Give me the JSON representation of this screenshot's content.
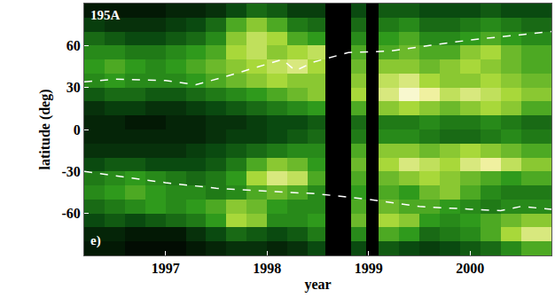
{
  "chart_data": {
    "type": "heatmap",
    "x_label": "year",
    "y_label": "latitude (deg)",
    "annotations": [
      "195A",
      "e)"
    ],
    "xlim": [
      1996.2,
      2000.8
    ],
    "xticks": [
      1997,
      1998,
      1999,
      2000
    ],
    "ylim": [
      -90,
      90
    ],
    "yticks": [
      -60,
      -30,
      0,
      30,
      60
    ],
    "zlim": [
      0,
      1
    ],
    "x_bins": [
      1996.2,
      1996.4,
      1996.6,
      1996.8,
      1997.0,
      1997.2,
      1997.4,
      1997.6,
      1997.8,
      1998.0,
      1998.2,
      1998.4,
      1998.57,
      1998.83,
      1998.98,
      1999.1,
      1999.3,
      1999.5,
      1999.7,
      1999.9,
      2000.1,
      2000.3,
      2000.5,
      2000.8
    ],
    "y_bins": [
      -90,
      -80,
      -70,
      -60,
      -50,
      -40,
      -30,
      -20,
      -10,
      0,
      10,
      20,
      30,
      40,
      50,
      60,
      70,
      80,
      90
    ],
    "cells": [
      [
        0.1,
        0.1,
        0.05,
        0.05,
        0.05,
        0.1,
        0.15,
        0.2,
        0.2,
        0.15,
        0.2,
        0.3,
        null,
        0.3,
        null,
        0.35,
        0.3,
        0.25,
        0.3,
        0.35,
        0.4,
        0.5,
        0.6
      ],
      [
        0.15,
        0.15,
        0.1,
        0.1,
        0.1,
        0.2,
        0.3,
        0.4,
        0.35,
        0.3,
        0.35,
        0.45,
        null,
        0.5,
        null,
        0.6,
        0.55,
        0.4,
        0.45,
        0.5,
        0.6,
        0.75,
        0.85
      ],
      [
        0.3,
        0.35,
        0.3,
        0.35,
        0.4,
        0.45,
        0.55,
        0.75,
        0.7,
        0.5,
        0.5,
        0.55,
        null,
        0.65,
        null,
        0.75,
        0.7,
        0.55,
        0.5,
        0.55,
        0.6,
        0.65,
        0.7
      ],
      [
        0.4,
        0.45,
        0.5,
        0.55,
        0.5,
        0.55,
        0.6,
        0.7,
        0.65,
        0.55,
        0.5,
        0.5,
        null,
        0.6,
        null,
        0.65,
        0.6,
        0.6,
        0.55,
        0.5,
        0.45,
        0.5,
        0.5
      ],
      [
        0.5,
        0.55,
        0.6,
        0.55,
        0.5,
        0.5,
        0.45,
        0.5,
        0.6,
        0.65,
        0.6,
        0.5,
        null,
        0.55,
        null,
        0.6,
        0.55,
        0.65,
        0.7,
        0.6,
        0.5,
        0.45,
        0.45
      ],
      [
        0.45,
        0.5,
        0.55,
        0.5,
        0.45,
        0.4,
        0.45,
        0.55,
        0.75,
        0.85,
        0.8,
        0.6,
        null,
        0.6,
        null,
        0.65,
        0.7,
        0.75,
        0.7,
        0.65,
        0.6,
        0.55,
        0.6
      ],
      [
        0.3,
        0.35,
        0.35,
        0.3,
        0.3,
        0.3,
        0.35,
        0.45,
        0.6,
        0.7,
        0.65,
        0.55,
        null,
        0.65,
        null,
        0.75,
        0.85,
        0.8,
        0.75,
        0.85,
        0.9,
        0.8,
        0.7
      ],
      [
        0.2,
        0.2,
        0.2,
        0.2,
        0.2,
        0.25,
        0.3,
        0.35,
        0.4,
        0.45,
        0.5,
        0.5,
        null,
        0.6,
        null,
        0.7,
        0.7,
        0.65,
        0.7,
        0.75,
        0.7,
        0.65,
        0.6
      ],
      [
        0.15,
        0.15,
        0.15,
        0.15,
        0.15,
        0.15,
        0.2,
        0.25,
        0.25,
        0.3,
        0.35,
        0.4,
        null,
        0.45,
        null,
        0.5,
        0.5,
        0.45,
        0.4,
        0.4,
        0.45,
        0.5,
        0.45
      ],
      [
        0.15,
        0.15,
        0.1,
        0.1,
        0.15,
        0.15,
        0.2,
        0.2,
        0.25,
        0.3,
        0.3,
        0.35,
        null,
        0.4,
        null,
        0.45,
        0.45,
        0.5,
        0.45,
        0.45,
        0.5,
        0.45,
        0.4
      ],
      [
        0.2,
        0.25,
        0.25,
        0.2,
        0.2,
        0.25,
        0.3,
        0.35,
        0.4,
        0.45,
        0.5,
        0.55,
        null,
        0.6,
        null,
        0.7,
        0.75,
        0.7,
        0.65,
        0.7,
        0.75,
        0.7,
        0.6
      ],
      [
        0.35,
        0.4,
        0.4,
        0.35,
        0.35,
        0.4,
        0.45,
        0.5,
        0.55,
        0.6,
        0.65,
        0.7,
        null,
        0.75,
        null,
        0.85,
        0.95,
        0.9,
        0.8,
        0.85,
        0.8,
        0.75,
        0.7
      ],
      [
        0.5,
        0.55,
        0.5,
        0.5,
        0.5,
        0.55,
        0.6,
        0.65,
        0.7,
        0.75,
        0.7,
        0.7,
        null,
        0.7,
        null,
        0.8,
        0.85,
        0.75,
        0.7,
        0.7,
        0.75,
        0.7,
        0.65
      ],
      [
        0.55,
        0.6,
        0.55,
        0.5,
        0.55,
        0.6,
        0.65,
        0.7,
        0.75,
        0.8,
        0.85,
        0.75,
        null,
        0.65,
        null,
        0.7,
        0.7,
        0.65,
        0.7,
        0.75,
        0.7,
        0.65,
        0.6
      ],
      [
        0.5,
        0.5,
        0.45,
        0.45,
        0.5,
        0.55,
        0.6,
        0.75,
        0.8,
        0.7,
        0.75,
        0.8,
        null,
        0.6,
        null,
        0.6,
        0.65,
        0.6,
        0.6,
        0.7,
        0.75,
        0.65,
        0.6
      ],
      [
        0.4,
        0.35,
        0.3,
        0.3,
        0.35,
        0.4,
        0.5,
        0.7,
        0.8,
        0.75,
        0.6,
        0.55,
        null,
        0.5,
        null,
        0.55,
        0.6,
        0.5,
        0.5,
        0.55,
        0.6,
        0.55,
        0.5
      ],
      [
        0.25,
        0.2,
        0.2,
        0.2,
        0.25,
        0.3,
        0.4,
        0.6,
        0.7,
        0.6,
        0.45,
        0.4,
        null,
        0.4,
        null,
        0.45,
        0.5,
        0.4,
        0.4,
        0.45,
        0.5,
        0.45,
        0.4
      ],
      [
        0.1,
        0.1,
        0.1,
        0.1,
        0.15,
        0.15,
        0.2,
        0.3,
        0.4,
        0.35,
        0.25,
        0.25,
        null,
        0.3,
        null,
        0.35,
        0.35,
        0.3,
        0.3,
        0.3,
        0.35,
        0.3,
        0.3
      ]
    ],
    "lines": [
      {
        "x": [
          1996.2,
          1996.5,
          1997.0,
          1997.3,
          1997.6,
          1998.0,
          1998.15,
          1998.28,
          1998.45,
          1998.8,
          1999.2,
          1999.6,
          2000.0,
          2000.4,
          2000.8
        ],
        "values": [
          34,
          36,
          35,
          32,
          38,
          47,
          50,
          42,
          48,
          55,
          56,
          60,
          64,
          67,
          70
        ],
        "color": "#ffffff",
        "line_style": "dashed"
      },
      {
        "x": [
          1996.2,
          1996.5,
          1997.0,
          1997.5,
          1998.0,
          1998.5,
          1999.0,
          1999.5,
          2000.0,
          2000.3,
          2000.5,
          2000.8
        ],
        "values": [
          -30,
          -33,
          -38,
          -42,
          -44,
          -46,
          -50,
          -55,
          -57,
          -58,
          -55,
          -57
        ],
        "color": "#ffffff",
        "line_style": "dashed"
      }
    ]
  }
}
